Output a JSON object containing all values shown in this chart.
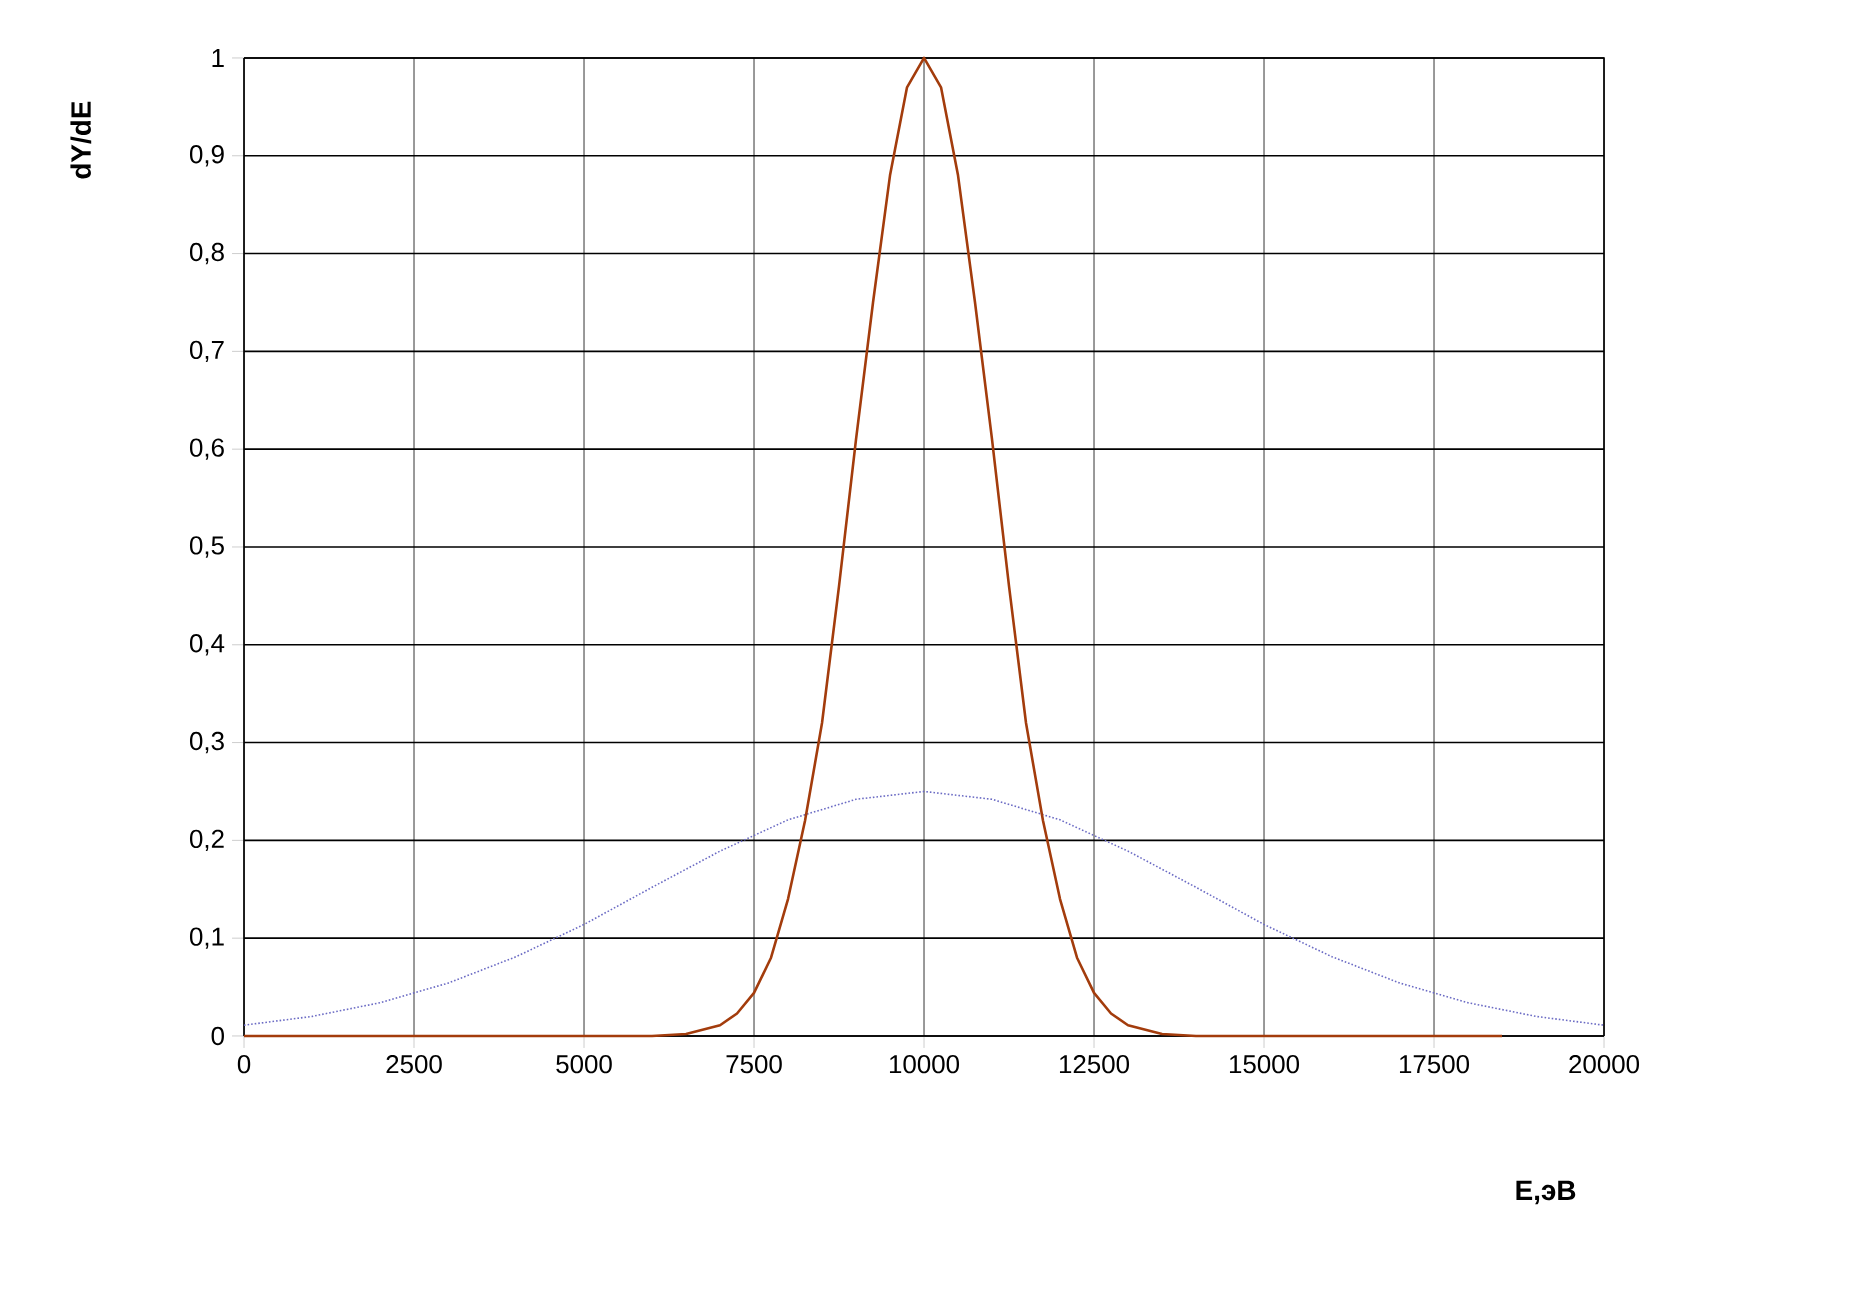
{
  "chart_data": {
    "type": "line",
    "xlabel": "E,эВ",
    "ylabel": "dY/dE",
    "xlim": [
      0,
      20000
    ],
    "ylim": [
      0,
      1
    ],
    "xticks": [
      0,
      2500,
      5000,
      7500,
      10000,
      12500,
      15000,
      17500,
      20000
    ],
    "yticks": [
      0,
      {
        "value": 0.1,
        "label": "0,1"
      },
      {
        "value": 0.2,
        "label": "0,2"
      },
      {
        "value": 0.3,
        "label": "0,3"
      },
      {
        "value": 0.4,
        "label": "0,4"
      },
      {
        "value": 0.5,
        "label": "0,5"
      },
      {
        "value": 0.6,
        "label": "0,6"
      },
      {
        "value": 0.7,
        "label": "0,7"
      },
      {
        "value": 0.8,
        "label": "0,8"
      },
      {
        "value": 0.9,
        "label": "0,9"
      },
      1
    ],
    "grid": true,
    "marker": "none",
    "series": [
      {
        "color": "#6b6bc4",
        "line_style": "dotted",
        "x": [
          0,
          1000,
          2000,
          3000,
          4000,
          5000,
          6000,
          7000,
          8000,
          9000,
          10000,
          11000,
          12000,
          13000,
          14000,
          15000,
          16000,
          17000,
          18000,
          19000,
          20000
        ],
        "values": [
          0.011,
          0.02,
          0.034,
          0.054,
          0.081,
          0.114,
          0.152,
          0.189,
          0.221,
          0.242,
          0.25,
          0.242,
          0.221,
          0.189,
          0.152,
          0.114,
          0.081,
          0.054,
          0.034,
          0.02,
          0.011
        ]
      },
      {
        "color": "#a33c0c",
        "line_style": "solid",
        "x": [
          0,
          5000,
          6000,
          6500,
          7000,
          7250,
          7500,
          7750,
          8000,
          8250,
          8500,
          8750,
          9000,
          9250,
          9500,
          9750,
          10000,
          10250,
          10500,
          10750,
          11000,
          11250,
          11500,
          11750,
          12000,
          12250,
          12500,
          12750,
          13000,
          13500,
          14000,
          15000,
          18500
        ],
        "values": [
          0,
          0,
          0,
          0.002,
          0.011,
          0.023,
          0.044,
          0.08,
          0.14,
          0.22,
          0.32,
          0.46,
          0.61,
          0.75,
          0.88,
          0.97,
          1,
          0.97,
          0.88,
          0.75,
          0.61,
          0.46,
          0.32,
          0.22,
          0.14,
          0.08,
          0.044,
          0.023,
          0.011,
          0.002,
          0,
          0,
          0
        ]
      }
    ]
  }
}
